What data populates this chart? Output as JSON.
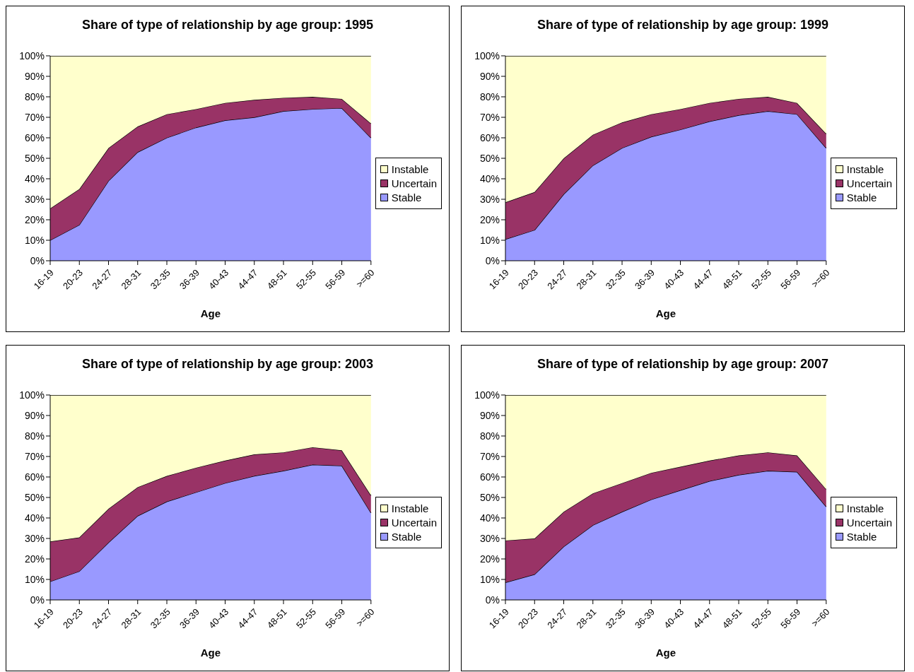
{
  "chart_data": [
    {
      "type": "area",
      "title": "Share of type of relationship by age group: 1995",
      "xlabel": "Age",
      "categories": [
        "16-19",
        "20-23",
        "24-27",
        "28-31",
        "32-35",
        "36-39",
        "40-43",
        "44-47",
        "48-51",
        "52-55",
        "56-59",
        ">=60"
      ],
      "stacked": true,
      "ylim": [
        0,
        100
      ],
      "yticks": [
        {
          "value": 0,
          "label": "0%"
        },
        {
          "value": 10,
          "label": "10%"
        },
        {
          "value": 20,
          "label": "20%"
        },
        {
          "value": 30,
          "label": "30%"
        },
        {
          "value": 40,
          "label": "40%"
        },
        {
          "value": 50,
          "label": "50%"
        },
        {
          "value": 60,
          "label": "60%"
        },
        {
          "value": 70,
          "label": "70%"
        },
        {
          "value": 80,
          "label": "80%"
        },
        {
          "value": 90,
          "label": "90%"
        },
        {
          "value": 100,
          "label": "100%"
        }
      ],
      "legend": "right",
      "grid": false,
      "series": [
        {
          "name": "Stable",
          "color": "#9999ff",
          "values": [
            10,
            17.5,
            39,
            53,
            60,
            65,
            68.5,
            70,
            73,
            74,
            74.5,
            60
          ]
        },
        {
          "name": "Uncertain",
          "color": "#993366",
          "values": [
            15.5,
            17.5,
            16,
            12.5,
            11.5,
            9,
            8.5,
            8.5,
            6.5,
            6,
            4.5,
            7
          ]
        },
        {
          "name": "Instable",
          "color": "#ffffcc",
          "values": [
            74.5,
            65,
            45,
            34.5,
            28.5,
            26,
            23,
            21.5,
            20.5,
            20,
            21,
            33
          ]
        }
      ]
    },
    {
      "type": "area",
      "title": "Share of type of relationship by age group: 1999",
      "xlabel": "Age",
      "categories": [
        "16-19",
        "20-23",
        "24-27",
        "28-31",
        "32-35",
        "36-39",
        "40-43",
        "44-47",
        "48-51",
        "52-55",
        "56-59",
        ">=60"
      ],
      "stacked": true,
      "ylim": [
        0,
        100
      ],
      "yticks": [
        {
          "value": 0,
          "label": "0%"
        },
        {
          "value": 10,
          "label": "10%"
        },
        {
          "value": 20,
          "label": "20%"
        },
        {
          "value": 30,
          "label": "30%"
        },
        {
          "value": 40,
          "label": "40%"
        },
        {
          "value": 50,
          "label": "50%"
        },
        {
          "value": 60,
          "label": "60%"
        },
        {
          "value": 70,
          "label": "70%"
        },
        {
          "value": 80,
          "label": "80%"
        },
        {
          "value": 90,
          "label": "90%"
        },
        {
          "value": 100,
          "label": "100%"
        }
      ],
      "legend": "right",
      "grid": false,
      "series": [
        {
          "name": "Stable",
          "color": "#9999ff",
          "values": [
            10.5,
            15,
            32.5,
            46.5,
            55,
            60.5,
            64,
            68,
            71,
            73,
            71.5,
            55
          ]
        },
        {
          "name": "Uncertain",
          "color": "#993366",
          "values": [
            18,
            18.5,
            17.5,
            15,
            12.5,
            11,
            10,
            9,
            8,
            7,
            5.5,
            7
          ]
        },
        {
          "name": "Instable",
          "color": "#ffffcc",
          "values": [
            71.5,
            66.5,
            50,
            38.5,
            32.5,
            28.5,
            26,
            23,
            21,
            20,
            23,
            38
          ]
        }
      ]
    },
    {
      "type": "area",
      "title": "Share of type of relationship by age group: 2003",
      "xlabel": "Age",
      "categories": [
        "16-19",
        "20-23",
        "24-27",
        "28-31",
        "32-35",
        "36-39",
        "40-43",
        "44-47",
        "48-51",
        "52-55",
        "56-59",
        ">=60"
      ],
      "stacked": true,
      "ylim": [
        0,
        100
      ],
      "yticks": [
        {
          "value": 0,
          "label": "0%"
        },
        {
          "value": 10,
          "label": "10%"
        },
        {
          "value": 20,
          "label": "20%"
        },
        {
          "value": 30,
          "label": "30%"
        },
        {
          "value": 40,
          "label": "40%"
        },
        {
          "value": 50,
          "label": "50%"
        },
        {
          "value": 60,
          "label": "60%"
        },
        {
          "value": 70,
          "label": "70%"
        },
        {
          "value": 80,
          "label": "80%"
        },
        {
          "value": 90,
          "label": "90%"
        },
        {
          "value": 100,
          "label": "100%"
        }
      ],
      "legend": "right",
      "grid": false,
      "series": [
        {
          "name": "Stable",
          "color": "#9999ff",
          "values": [
            9,
            14,
            28,
            41,
            48,
            52.5,
            57,
            60.5,
            63,
            66,
            65.5,
            42.5
          ]
        },
        {
          "name": "Uncertain",
          "color": "#993366",
          "values": [
            19.5,
            16.5,
            16.5,
            14,
            12.5,
            12,
            11,
            10.5,
            9,
            8.5,
            7.5,
            8.5
          ]
        },
        {
          "name": "Instable",
          "color": "#ffffcc",
          "values": [
            71.5,
            69.5,
            55.5,
            45,
            39.5,
            35.5,
            32,
            29,
            28,
            25.5,
            27,
            49
          ]
        }
      ]
    },
    {
      "type": "area",
      "title": "Share of type of relationship by age group: 2007",
      "xlabel": "Age",
      "categories": [
        "16-19",
        "20-23",
        "24-27",
        "28-31",
        "32-35",
        "36-39",
        "40-43",
        "44-47",
        "48-51",
        "52-55",
        "56-59",
        ">=60"
      ],
      "stacked": true,
      "ylim": [
        0,
        100
      ],
      "yticks": [
        {
          "value": 0,
          "label": "0%"
        },
        {
          "value": 10,
          "label": "10%"
        },
        {
          "value": 20,
          "label": "20%"
        },
        {
          "value": 30,
          "label": "30%"
        },
        {
          "value": 40,
          "label": "40%"
        },
        {
          "value": 50,
          "label": "50%"
        },
        {
          "value": 60,
          "label": "60%"
        },
        {
          "value": 70,
          "label": "70%"
        },
        {
          "value": 80,
          "label": "80%"
        },
        {
          "value": 90,
          "label": "90%"
        },
        {
          "value": 100,
          "label": "100%"
        }
      ],
      "legend": "right",
      "grid": false,
      "series": [
        {
          "name": "Stable",
          "color": "#9999ff",
          "values": [
            8.5,
            12.5,
            26,
            36.5,
            43,
            49,
            53.5,
            58,
            61,
            63,
            62.5,
            45.5
          ]
        },
        {
          "name": "Uncertain",
          "color": "#993366",
          "values": [
            20.5,
            17.5,
            17,
            15.5,
            14,
            13,
            11.5,
            10,
            9.5,
            9,
            8,
            8.5
          ]
        },
        {
          "name": "Instable",
          "color": "#ffffcc",
          "values": [
            71,
            70,
            57,
            48,
            43,
            38,
            35,
            32,
            29.5,
            28,
            29.5,
            46
          ]
        }
      ]
    }
  ]
}
